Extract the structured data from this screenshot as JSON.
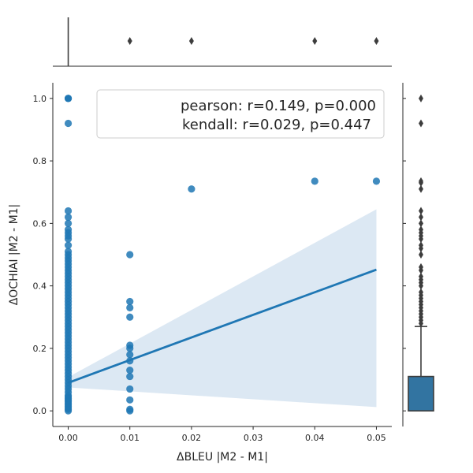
{
  "chart_data": {
    "type": "scatter",
    "xlabel": "ΔBLEU |M2 - M1|",
    "ylabel": "ΔOCHIAI |M2 - M1|",
    "xlim": [
      -0.0025,
      0.0525
    ],
    "ylim": [
      -0.05,
      1.05
    ],
    "x_ticks": [
      0.0,
      0.01,
      0.02,
      0.03,
      0.04,
      0.05
    ],
    "x_tick_labels": [
      "0.00",
      "0.01",
      "0.02",
      "0.03",
      "0.04",
      "0.05"
    ],
    "y_ticks": [
      0.0,
      0.2,
      0.4,
      0.6,
      0.8,
      1.0
    ],
    "y_tick_labels": [
      "0.0",
      "0.2",
      "0.4",
      "0.6",
      "0.8",
      "1.0"
    ],
    "legend": {
      "placement": "top-right",
      "lines": [
        "pearson: r=0.149, p=0.000",
        "kendall: r=0.029, p=0.447"
      ]
    },
    "points": {
      "x_0": [
        0.0,
        0.005,
        0.01,
        0.015,
        0.02,
        0.025,
        0.03,
        0.035,
        0.04,
        0.045,
        0.05,
        0.06,
        0.07,
        0.08,
        0.09,
        0.1,
        0.11,
        0.12,
        0.13,
        0.14,
        0.15,
        0.16,
        0.17,
        0.18,
        0.19,
        0.2,
        0.21,
        0.22,
        0.23,
        0.24,
        0.25,
        0.26,
        0.27,
        0.28,
        0.29,
        0.3,
        0.31,
        0.32,
        0.33,
        0.34,
        0.35,
        0.36,
        0.37,
        0.38,
        0.39,
        0.4,
        0.41,
        0.42,
        0.43,
        0.44,
        0.45,
        0.46,
        0.47,
        0.48,
        0.49,
        0.5,
        0.51,
        0.53,
        0.55,
        0.56,
        0.57,
        0.58,
        0.6,
        0.62,
        0.64,
        0.92,
        1.0,
        1.0,
        1.0
      ],
      "x_001": [
        0.0,
        0.005,
        0.035,
        0.07,
        0.11,
        0.13,
        0.16,
        0.18,
        0.2,
        0.21,
        0.3,
        0.33,
        0.35,
        0.5
      ],
      "x_002": [
        0.71
      ],
      "x_004": [
        0.735
      ],
      "x_005": [
        0.735
      ]
    },
    "regression": {
      "x": [
        0.0,
        0.05
      ],
      "y": [
        0.09,
        0.452
      ],
      "ci_upper": [
        0.108,
        0.645
      ],
      "ci_lower": [
        0.075,
        0.012
      ]
    },
    "marginal_x": {
      "whisker": [
        0.0,
        0.0
      ],
      "outliers": [
        0.01,
        0.02,
        0.04,
        0.05
      ]
    },
    "marginal_y": {
      "q1": 0.0,
      "q3": 0.11,
      "whisker_low": 0.0,
      "whisker_high": 0.27,
      "outliers": [
        0.28,
        0.29,
        0.3,
        0.31,
        0.32,
        0.33,
        0.34,
        0.35,
        0.36,
        0.37,
        0.38,
        0.4,
        0.41,
        0.42,
        0.43,
        0.45,
        0.46,
        0.5,
        0.52,
        0.53,
        0.55,
        0.56,
        0.57,
        0.58,
        0.6,
        0.62,
        0.64,
        0.71,
        0.73,
        0.735,
        0.92,
        1.0
      ]
    },
    "colors": {
      "point": "#1f77b4",
      "line": "#1f77b4",
      "ci_band": "#dce8f3",
      "box_fill": "#3274a1",
      "box_line": "#3d3d3d",
      "axis": "#262626"
    }
  }
}
